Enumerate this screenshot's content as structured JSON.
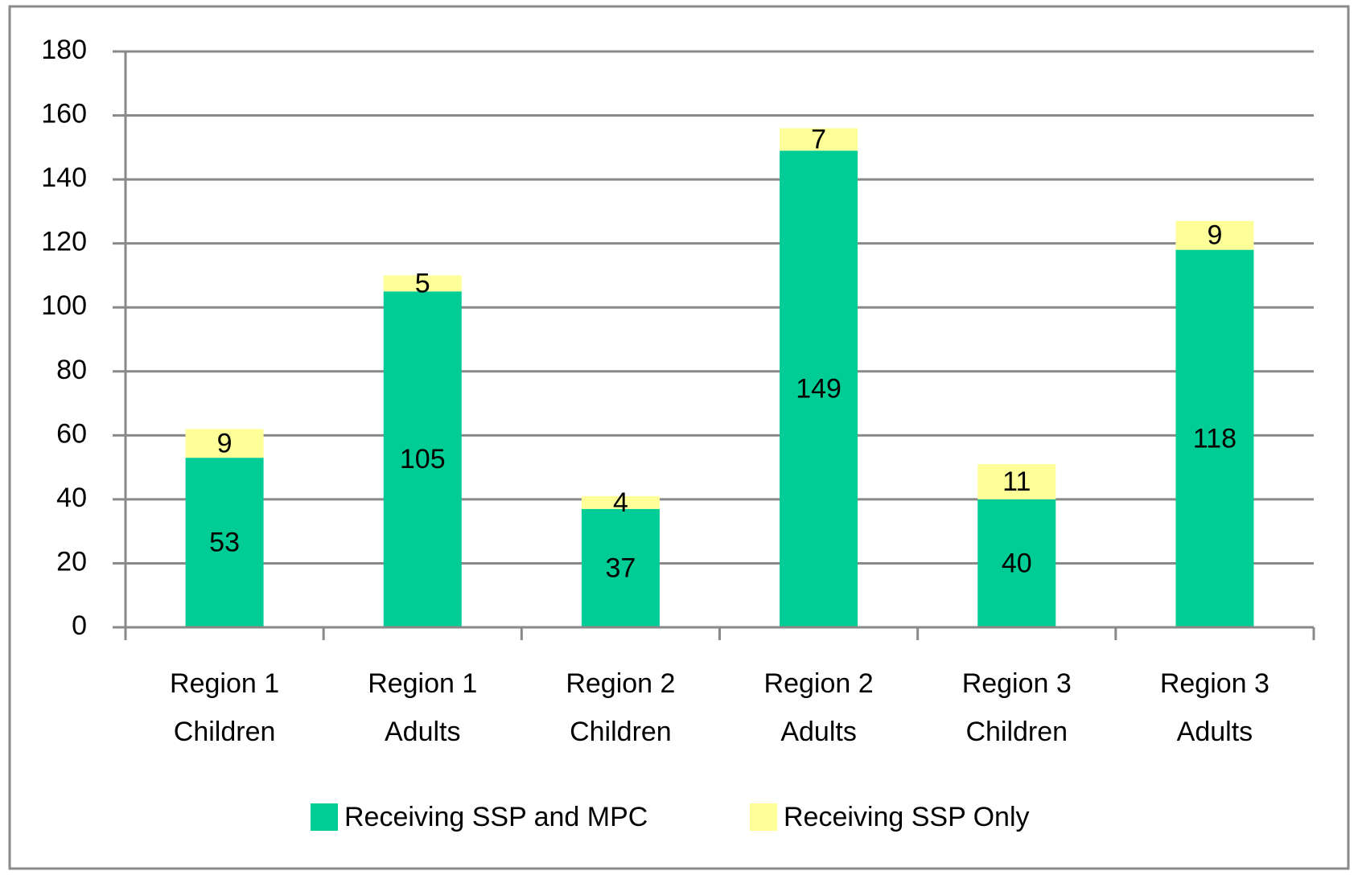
{
  "chart_data": {
    "type": "stacked_bar",
    "categories": [
      "Region 1 Children",
      "Region 1 Adults",
      "Region 2 Children",
      "Region 2 Adults",
      "Region 3 Children",
      "Region 3 Adults"
    ],
    "series": [
      {
        "name": "Receiving SSP and MPC",
        "color": "#00cc96",
        "values": [
          53,
          105,
          37,
          149,
          40,
          118
        ]
      },
      {
        "name": "Receiving SSP Only",
        "color": "#ffff99",
        "values": [
          9,
          5,
          4,
          7,
          11,
          9
        ]
      }
    ],
    "ylim": [
      0,
      180
    ],
    "yticks": [
      0,
      20,
      40,
      60,
      80,
      100,
      120,
      140,
      160,
      180
    ],
    "grid": true,
    "legend": "bottom"
  }
}
